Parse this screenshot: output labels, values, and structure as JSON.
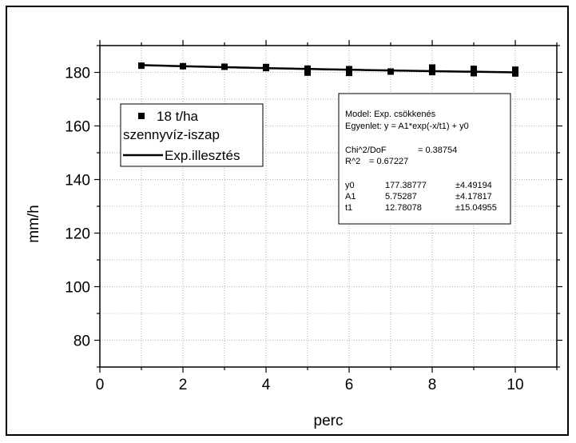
{
  "chart_data": {
    "type": "scatter",
    "xlabel": "perc",
    "ylabel": "mm/h",
    "xlim": [
      0,
      11
    ],
    "ylim": [
      70,
      190
    ],
    "x_ticks": [
      0,
      2,
      4,
      6,
      8,
      10
    ],
    "y_ticks": [
      80,
      100,
      120,
      140,
      160,
      180
    ],
    "grid": true,
    "legend_position": "upper-left",
    "series": [
      {
        "name": "18 t/ha szennyvíz-iszap",
        "marker": "square",
        "color": "#000000",
        "x": [
          1,
          2,
          3,
          4,
          4,
          5,
          5,
          6,
          6,
          7,
          8,
          8,
          8,
          9,
          9,
          10,
          10
        ],
        "y": [
          182.5,
          182.3,
          182.1,
          182.0,
          181.6,
          181.4,
          179.9,
          181.2,
          179.8,
          180.3,
          181.8,
          180.6,
          180.1,
          181.3,
          179.7,
          181.0,
          179.6
        ]
      }
    ],
    "fit": {
      "name": "Exp.illesztés",
      "color": "#000000",
      "y0": 177.38777,
      "A1": 5.75287,
      "t1": 12.78078,
      "x_range": [
        1,
        10
      ]
    },
    "legend": {
      "marker_label": "18 t/ha",
      "marker_label_2": "szennyvíz-iszap",
      "line_label": "Exp.illesztés"
    },
    "info_box": {
      "model": "Model: Exp. csökkenés",
      "equation": "Egyenlet: y = A1*exp(-x/t1) + y0",
      "chi_label": "Chi^2/DoF",
      "chi_value": "= 0.38754",
      "r2_label": "R^2",
      "r2_value": "= 0.67227",
      "params": [
        {
          "name": "y0",
          "value": "177.38777",
          "error": "±4.49194"
        },
        {
          "name": "A1",
          "value": "5.75287",
          "error": "±4.17817"
        },
        {
          "name": "t1",
          "value": "12.78078",
          "error": "±15.04955"
        }
      ]
    }
  }
}
